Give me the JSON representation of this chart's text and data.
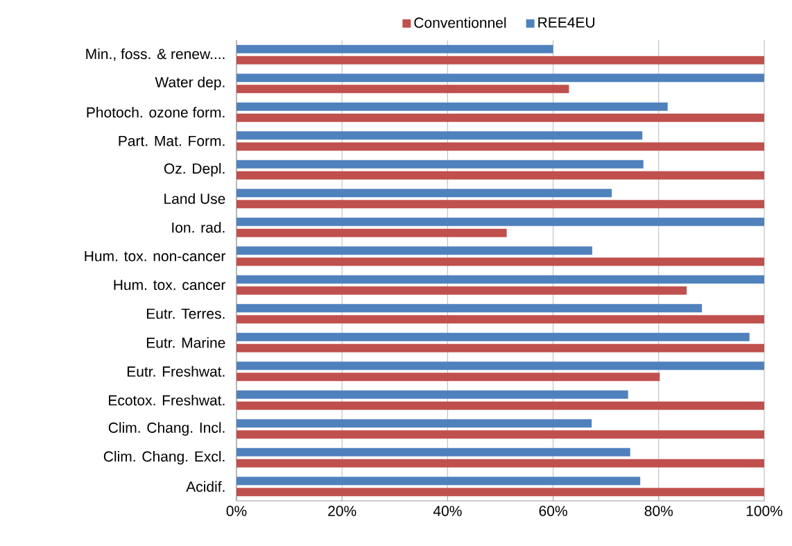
{
  "chart_data": {
    "type": "bar",
    "orientation": "horizontal",
    "categories": [
      "Min., foss. & renew....",
      "Water dep.",
      "Photoch. ozone form.",
      "Part. Mat. Form.",
      "Oz. Depl.",
      "Land Use",
      "Ion. rad.",
      "Hum. tox. non-cancer",
      "Hum. tox. cancer",
      "Eutr. Terres.",
      "Eutr. Marine",
      "Eutr. Freshwat.",
      "Ecotox. Freshwat.",
      "Clim. Chang. Incl.",
      "Clim. Chang. Excl.",
      "Acidif."
    ],
    "series": [
      {
        "name": "Conventionnel",
        "color": "#c0504d",
        "values": [
          100,
          63,
          100,
          100,
          100,
          100,
          51.2,
          100,
          85.3,
          100,
          100,
          80.2,
          100,
          100,
          100,
          100
        ]
      },
      {
        "name": "REE4EU",
        "color": "#4f81bd",
        "values": [
          60,
          100,
          81.7,
          76.9,
          77.1,
          71.1,
          100,
          67.4,
          100,
          88.2,
          97.2,
          100,
          74.2,
          67.3,
          74.6,
          76.5
        ]
      }
    ],
    "xlim": [
      0,
      100
    ],
    "xticks": [
      {
        "value": 0,
        "label": "0%"
      },
      {
        "value": 20,
        "label": "20%"
      },
      {
        "value": 40,
        "label": "40%"
      },
      {
        "value": 60,
        "label": "60%"
      },
      {
        "value": 80,
        "label": "80%"
      },
      {
        "value": 100,
        "label": "100%"
      }
    ],
    "grid": "x",
    "legend": "top"
  }
}
